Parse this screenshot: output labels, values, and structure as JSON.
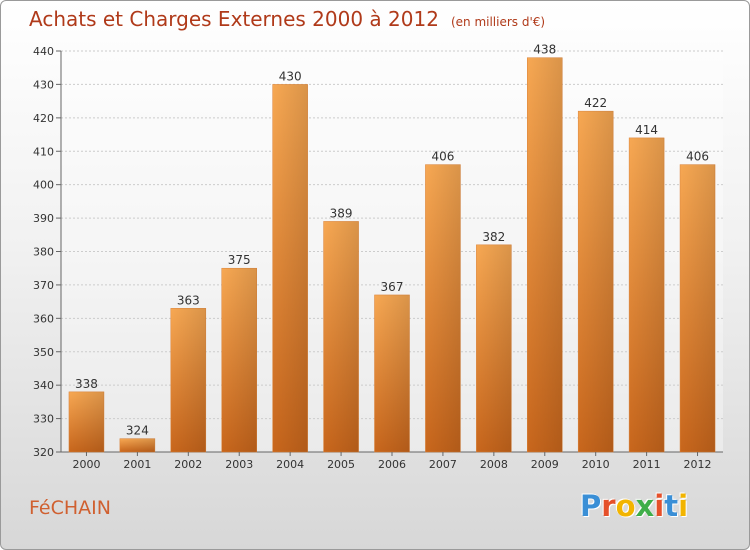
{
  "chart_data": {
    "type": "bar",
    "title": "Achats et Charges Externes 2000 à 2012",
    "subtitle": "(en milliers d'€)",
    "categories": [
      "2000",
      "2001",
      "2002",
      "2003",
      "2004",
      "2005",
      "2006",
      "2007",
      "2008",
      "2009",
      "2010",
      "2011",
      "2012"
    ],
    "values": [
      338,
      324,
      363,
      375,
      430,
      389,
      367,
      406,
      382,
      438,
      422,
      414,
      406
    ],
    "ylim": [
      320,
      440
    ],
    "yticks": [
      320,
      330,
      340,
      350,
      360,
      370,
      380,
      390,
      400,
      410,
      420,
      430,
      440
    ],
    "grid": true,
    "colors": {
      "bar_top": "#f7a853",
      "bar_bottom": "#c8661c",
      "label": "#333333",
      "grid": "#cccccc"
    }
  },
  "footer": {
    "place": "FéCHAIN",
    "logo": "Proxiti"
  },
  "logo_colors": [
    "#3a8fd6",
    "#e5502a",
    "#f2b400",
    "#3fae49",
    "#e5502a",
    "#3a8fd6",
    "#f2b400"
  ]
}
